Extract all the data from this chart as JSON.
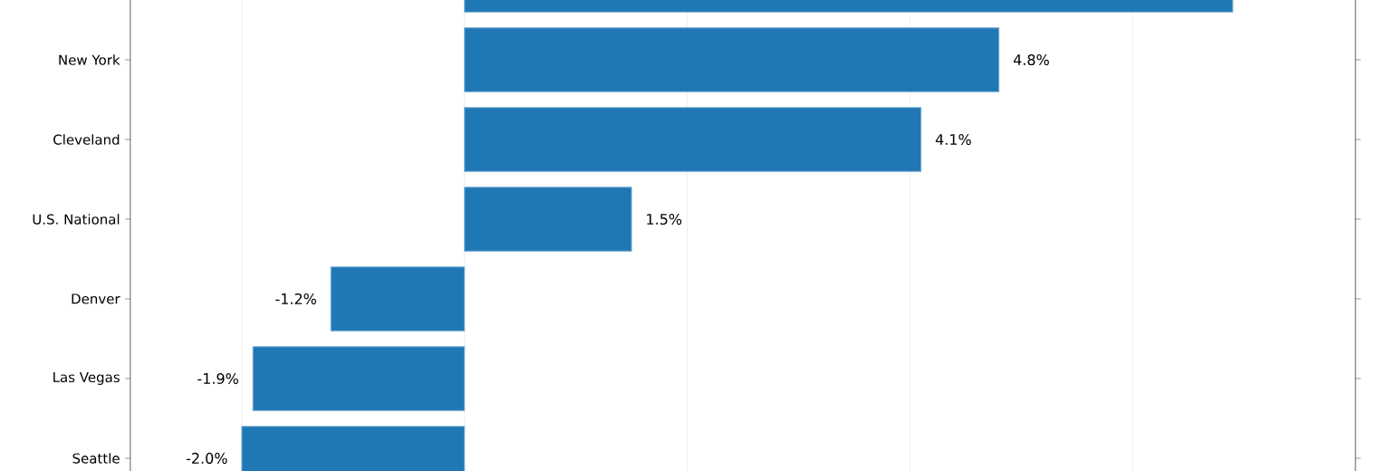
{
  "chart_data": {
    "type": "bar",
    "orientation": "horizontal",
    "color": "#1f77b4",
    "categories": [
      null,
      "New York",
      "Cleveland",
      "U.S. National",
      "Denver",
      "Las Vegas",
      "Seattle"
    ],
    "values": [
      6.9,
      4.8,
      4.1,
      1.5,
      -1.2,
      -1.9,
      -2.0
    ],
    "value_labels": [
      null,
      "4.8%",
      "4.1%",
      "1.5%",
      "-1.2%",
      "-1.9%",
      "-2.0%"
    ],
    "xlim": [
      -3,
      8
    ],
    "xticks": [
      {
        "value": -2,
        "label": null
      },
      {
        "value": 0,
        "label": null
      },
      {
        "value": 2,
        "label": null
      },
      {
        "value": 4,
        "label": null
      },
      {
        "value": 6,
        "label": null
      },
      {
        "value": 8,
        "label": null
      }
    ],
    "grid": "x"
  }
}
